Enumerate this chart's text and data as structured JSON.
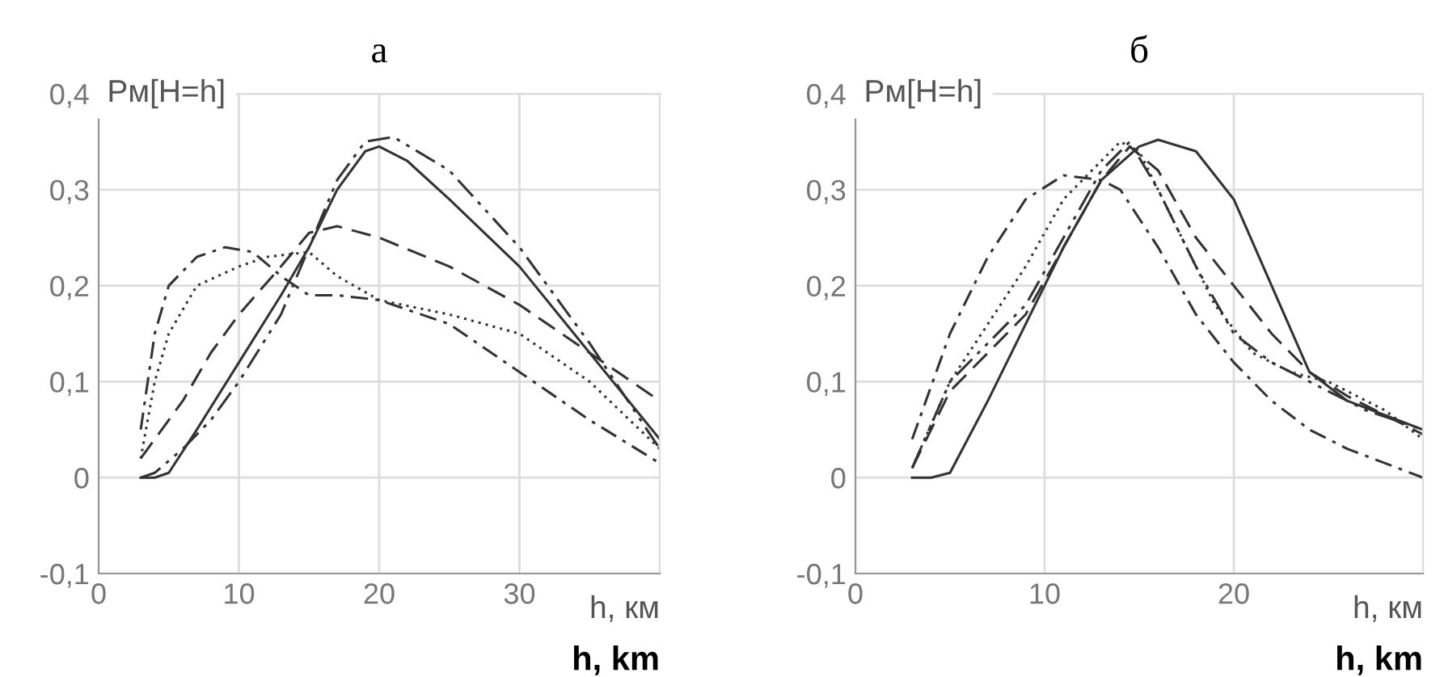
{
  "chart_data": [
    {
      "type": "line",
      "title": "а",
      "ylabel": "Pм[H=h]",
      "xlabel": "h, км",
      "annotations": [
        "h, km"
      ],
      "xlim": [
        0,
        40
      ],
      "xticks": [
        0,
        10,
        20,
        30
      ],
      "ylim": [
        -0.1,
        0.4
      ],
      "yticks": [
        {
          "value": -0.1,
          "label": "-0,1"
        },
        {
          "value": 0,
          "label": "0"
        },
        {
          "value": 0.1,
          "label": "0,1"
        },
        {
          "value": 0.2,
          "label": "0,2"
        },
        {
          "value": 0.3,
          "label": "0,3"
        },
        {
          "value": 0.4,
          "label": "0,4"
        }
      ],
      "grid": true,
      "series": [
        {
          "color": "#333333",
          "line_style": "solid",
          "x": [
            3,
            4,
            5,
            7,
            10,
            13,
            15,
            17,
            19,
            20,
            22,
            25,
            30,
            35,
            40
          ],
          "values": [
            0,
            0,
            0.005,
            0.05,
            0.12,
            0.19,
            0.24,
            0.3,
            0.34,
            0.345,
            0.33,
            0.29,
            0.22,
            0.13,
            0.04
          ]
        },
        {
          "color": "#333333",
          "line_style": "dashdotdot",
          "x": [
            3,
            4,
            6,
            8,
            10,
            13,
            15,
            17,
            19,
            21,
            25,
            30,
            35,
            40
          ],
          "values": [
            0,
            0.005,
            0.03,
            0.06,
            0.1,
            0.17,
            0.24,
            0.31,
            0.35,
            0.355,
            0.32,
            0.24,
            0.14,
            0.03
          ]
        },
        {
          "color": "#333333",
          "line_style": "dashed",
          "x": [
            3,
            4,
            6,
            8,
            10,
            13,
            15,
            17,
            20,
            25,
            30,
            35,
            40
          ],
          "values": [
            0.02,
            0.04,
            0.08,
            0.13,
            0.17,
            0.22,
            0.255,
            0.262,
            0.25,
            0.22,
            0.18,
            0.13,
            0.08
          ]
        },
        {
          "color": "#333333",
          "line_style": "dotted",
          "x": [
            3,
            4,
            5,
            7,
            10,
            12,
            15,
            17,
            20,
            25,
            30,
            35,
            40
          ],
          "values": [
            0.02,
            0.1,
            0.15,
            0.2,
            0.22,
            0.23,
            0.235,
            0.21,
            0.185,
            0.17,
            0.15,
            0.1,
            0.03
          ]
        },
        {
          "color": "#333333",
          "line_style": "dashdot",
          "x": [
            3,
            4,
            5,
            7,
            9,
            11,
            13,
            15,
            17,
            20,
            25,
            30,
            35,
            40
          ],
          "values": [
            0.05,
            0.15,
            0.2,
            0.23,
            0.24,
            0.235,
            0.21,
            0.19,
            0.19,
            0.185,
            0.16,
            0.11,
            0.06,
            0.015
          ]
        }
      ]
    },
    {
      "type": "line",
      "title": "б",
      "ylabel": "Pм[H=h]",
      "xlabel": "h, км",
      "annotations": [
        "h, km"
      ],
      "xlim": [
        0,
        30
      ],
      "xticks": [
        0,
        10,
        20
      ],
      "ylim": [
        -0.1,
        0.4
      ],
      "yticks": [
        {
          "value": -0.1,
          "label": "-0,1"
        },
        {
          "value": 0,
          "label": "0"
        },
        {
          "value": 0.1,
          "label": "0,1"
        },
        {
          "value": 0.2,
          "label": "0,2"
        },
        {
          "value": 0.3,
          "label": "0,3"
        },
        {
          "value": 0.4,
          "label": "0,4"
        }
      ],
      "grid": true,
      "series": [
        {
          "color": "#333333",
          "line_style": "solid",
          "x": [
            3,
            4,
            5,
            7,
            9,
            11,
            13,
            15,
            16,
            18,
            20,
            22,
            24,
            26,
            28,
            30
          ],
          "values": [
            0,
            0,
            0.005,
            0.08,
            0.16,
            0.24,
            0.31,
            0.345,
            0.352,
            0.34,
            0.29,
            0.2,
            0.11,
            0.08,
            0.065,
            0.05
          ]
        },
        {
          "color": "#333333",
          "line_style": "dashed",
          "x": [
            3,
            5,
            7,
            9,
            11,
            13,
            14.5,
            16,
            18,
            20,
            22,
            24,
            26,
            28,
            30
          ],
          "values": [
            0.01,
            0.09,
            0.13,
            0.17,
            0.24,
            0.31,
            0.345,
            0.32,
            0.25,
            0.2,
            0.15,
            0.11,
            0.085,
            0.065,
            0.045
          ]
        },
        {
          "color": "#333333",
          "line_style": "dotted",
          "x": [
            3,
            5,
            7,
            9,
            11,
            13,
            14,
            15,
            17,
            19,
            21,
            23,
            25,
            28,
            30
          ],
          "values": [
            0.01,
            0.1,
            0.16,
            0.22,
            0.29,
            0.33,
            0.35,
            0.34,
            0.26,
            0.18,
            0.13,
            0.11,
            0.1,
            0.07,
            0.04
          ]
        },
        {
          "color": "#333333",
          "line_style": "dashdot",
          "x": [
            3,
            5,
            7,
            9,
            11,
            13,
            14,
            16,
            18,
            20,
            22,
            24,
            26,
            28,
            30
          ],
          "values": [
            0.04,
            0.15,
            0.23,
            0.29,
            0.315,
            0.31,
            0.3,
            0.24,
            0.17,
            0.12,
            0.08,
            0.05,
            0.03,
            0.015,
            0
          ]
        },
        {
          "color": "#333333",
          "line_style": "dashdotdot",
          "x": [
            3,
            5,
            7,
            9,
            11,
            13,
            14.5,
            16,
            18,
            20,
            22,
            24,
            27,
            30
          ],
          "values": [
            0.01,
            0.1,
            0.14,
            0.18,
            0.25,
            0.32,
            0.35,
            0.3,
            0.22,
            0.15,
            0.12,
            0.1,
            0.07,
            0.05
          ]
        }
      ]
    }
  ]
}
